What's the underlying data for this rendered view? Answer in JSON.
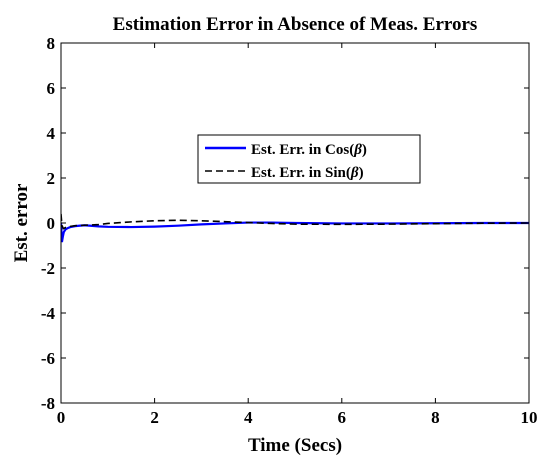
{
  "chart_data": {
    "type": "line",
    "title": "Estimation Error in Absence of Meas. Errors",
    "xlabel": "Time (Secs)",
    "ylabel": "Est. error",
    "xlim": [
      0,
      10
    ],
    "ylim": [
      -8,
      8
    ],
    "xticks": [
      0,
      2,
      4,
      6,
      8,
      10
    ],
    "yticks": [
      -8,
      -6,
      -4,
      -2,
      0,
      2,
      4,
      6,
      8
    ],
    "grid": false,
    "legend_position": "center-upper",
    "series": [
      {
        "name": "Est. Err. in Cos(β)",
        "legend_prefix": "Est. Err. in Cos(",
        "legend_symbol": "β",
        "legend_suffix": ")",
        "color": "#0000ff",
        "style": "solid",
        "x": [
          0,
          0.02,
          0.04,
          0.06,
          0.1,
          0.15,
          0.2,
          0.3,
          0.5,
          0.8,
          1.0,
          1.5,
          2.0,
          2.5,
          3.0,
          3.5,
          4.0,
          4.5,
          5.0,
          6.0,
          7.0,
          8.0,
          9.0,
          10.0
        ],
        "y": [
          0,
          -0.85,
          -0.6,
          -0.4,
          -0.28,
          -0.22,
          -0.18,
          -0.14,
          -0.1,
          -0.15,
          -0.17,
          -0.18,
          -0.16,
          -0.12,
          -0.06,
          -0.02,
          0.02,
          0.02,
          0.0,
          -0.02,
          -0.02,
          -0.01,
          0.0,
          0.0
        ]
      },
      {
        "name": "Est. Err. in Sin(β)",
        "legend_prefix": "Est. Err. in Sin(",
        "legend_symbol": "β",
        "legend_suffix": ")",
        "color": "#000000",
        "style": "dashed",
        "x": [
          0,
          0.02,
          0.05,
          0.1,
          0.2,
          0.3,
          0.5,
          0.8,
          1.0,
          1.5,
          2.0,
          2.5,
          3.0,
          3.5,
          4.0,
          4.5,
          5.0,
          6.0,
          7.0,
          8.0,
          9.0,
          10.0
        ],
        "y": [
          0.4,
          -0.1,
          -0.25,
          -0.2,
          -0.15,
          -0.12,
          -0.1,
          -0.07,
          -0.02,
          0.05,
          0.1,
          0.12,
          0.1,
          0.06,
          0.02,
          -0.02,
          -0.05,
          -0.06,
          -0.05,
          -0.03,
          -0.01,
          0.0
        ]
      }
    ]
  }
}
